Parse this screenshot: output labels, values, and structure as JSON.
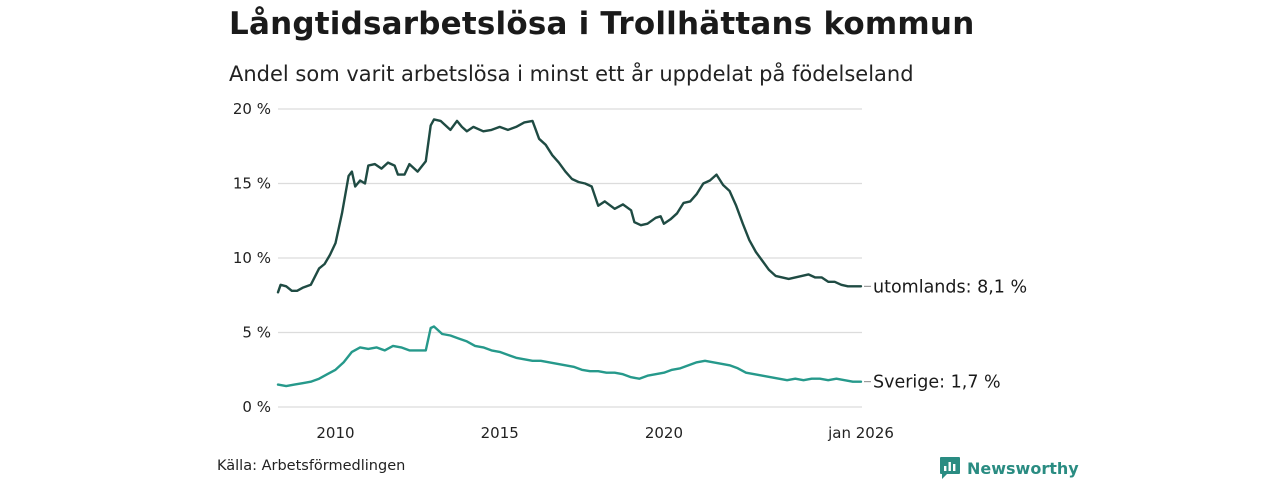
{
  "title": "Långtidsarbetslösa i Trollhättans kommun",
  "subtitle": "Andel som varit arbetslösa i minst ett år uppdelat på födelseland",
  "source": "Källa: Arbetsförmedlingen",
  "brand": {
    "name": "Newsworthy",
    "icon": "newsworthy-logo-icon",
    "color": "#2a8c82"
  },
  "chart_data": {
    "type": "line",
    "title": "Långtidsarbetslösa i Trollhättans kommun",
    "subtitle": "Andel som varit arbetslösa i minst ett år uppdelat på födelseland",
    "xlabel": "",
    "ylabel": "",
    "xlim": [
      2008.25,
      2026.0
    ],
    "ylim": [
      0,
      20
    ],
    "grid": true,
    "y_ticks": [
      {
        "value": 0,
        "label": "0 %"
      },
      {
        "value": 5,
        "label": "5 %"
      },
      {
        "value": 10,
        "label": "10 %"
      },
      {
        "value": 15,
        "label": "15 %"
      },
      {
        "value": 20,
        "label": "20 %"
      }
    ],
    "x_ticks": [
      {
        "value": 2010,
        "label": "2010"
      },
      {
        "value": 2015,
        "label": "2015"
      },
      {
        "value": 2020,
        "label": "2020"
      },
      {
        "value": 2026.0,
        "label": "jan 2026"
      }
    ],
    "series": [
      {
        "name": "utomlands",
        "end_label": "utomlands: 8,1 %",
        "color": "#1f4b43",
        "points": [
          [
            2008.25,
            7.7
          ],
          [
            2008.33,
            8.2
          ],
          [
            2008.5,
            8.1
          ],
          [
            2008.67,
            7.8
          ],
          [
            2008.83,
            7.8
          ],
          [
            2009.0,
            8.0
          ],
          [
            2009.25,
            8.2
          ],
          [
            2009.5,
            9.3
          ],
          [
            2009.67,
            9.6
          ],
          [
            2009.83,
            10.2
          ],
          [
            2010.0,
            11.0
          ],
          [
            2010.2,
            13.0
          ],
          [
            2010.4,
            15.5
          ],
          [
            2010.5,
            15.8
          ],
          [
            2010.6,
            14.8
          ],
          [
            2010.75,
            15.2
          ],
          [
            2010.9,
            15.0
          ],
          [
            2011.0,
            16.2
          ],
          [
            2011.2,
            16.3
          ],
          [
            2011.4,
            16.0
          ],
          [
            2011.6,
            16.4
          ],
          [
            2011.8,
            16.2
          ],
          [
            2011.9,
            15.6
          ],
          [
            2012.1,
            15.6
          ],
          [
            2012.25,
            16.3
          ],
          [
            2012.5,
            15.8
          ],
          [
            2012.75,
            16.5
          ],
          [
            2012.9,
            18.9
          ],
          [
            2013.0,
            19.3
          ],
          [
            2013.2,
            19.2
          ],
          [
            2013.5,
            18.6
          ],
          [
            2013.7,
            19.2
          ],
          [
            2013.85,
            18.8
          ],
          [
            2014.0,
            18.5
          ],
          [
            2014.2,
            18.8
          ],
          [
            2014.5,
            18.5
          ],
          [
            2014.75,
            18.6
          ],
          [
            2015.0,
            18.8
          ],
          [
            2015.25,
            18.6
          ],
          [
            2015.5,
            18.8
          ],
          [
            2015.75,
            19.1
          ],
          [
            2016.0,
            19.2
          ],
          [
            2016.2,
            18.0
          ],
          [
            2016.4,
            17.6
          ],
          [
            2016.6,
            16.9
          ],
          [
            2016.8,
            16.4
          ],
          [
            2017.0,
            15.8
          ],
          [
            2017.2,
            15.3
          ],
          [
            2017.4,
            15.1
          ],
          [
            2017.6,
            15.0
          ],
          [
            2017.8,
            14.8
          ],
          [
            2018.0,
            13.5
          ],
          [
            2018.2,
            13.8
          ],
          [
            2018.5,
            13.3
          ],
          [
            2018.75,
            13.6
          ],
          [
            2019.0,
            13.2
          ],
          [
            2019.1,
            12.4
          ],
          [
            2019.3,
            12.2
          ],
          [
            2019.5,
            12.3
          ],
          [
            2019.75,
            12.7
          ],
          [
            2019.9,
            12.8
          ],
          [
            2020.0,
            12.3
          ],
          [
            2020.2,
            12.6
          ],
          [
            2020.4,
            13.0
          ],
          [
            2020.6,
            13.7
          ],
          [
            2020.8,
            13.8
          ],
          [
            2021.0,
            14.3
          ],
          [
            2021.2,
            15.0
          ],
          [
            2021.4,
            15.2
          ],
          [
            2021.6,
            15.6
          ],
          [
            2021.8,
            14.9
          ],
          [
            2022.0,
            14.5
          ],
          [
            2022.2,
            13.5
          ],
          [
            2022.4,
            12.3
          ],
          [
            2022.6,
            11.2
          ],
          [
            2022.8,
            10.4
          ],
          [
            2023.0,
            9.8
          ],
          [
            2023.2,
            9.2
          ],
          [
            2023.4,
            8.8
          ],
          [
            2023.6,
            8.7
          ],
          [
            2023.8,
            8.6
          ],
          [
            2024.0,
            8.7
          ],
          [
            2024.2,
            8.8
          ],
          [
            2024.4,
            8.9
          ],
          [
            2024.6,
            8.7
          ],
          [
            2024.8,
            8.7
          ],
          [
            2025.0,
            8.4
          ],
          [
            2025.2,
            8.4
          ],
          [
            2025.4,
            8.2
          ],
          [
            2025.6,
            8.1
          ],
          [
            2025.8,
            8.1
          ],
          [
            2026.0,
            8.1
          ]
        ]
      },
      {
        "name": "Sverige",
        "end_label": "Sverige: 1,7 %",
        "color": "#26998b",
        "points": [
          [
            2008.25,
            1.5
          ],
          [
            2008.5,
            1.4
          ],
          [
            2008.75,
            1.5
          ],
          [
            2009.0,
            1.6
          ],
          [
            2009.25,
            1.7
          ],
          [
            2009.5,
            1.9
          ],
          [
            2009.75,
            2.2
          ],
          [
            2010.0,
            2.5
          ],
          [
            2010.25,
            3.0
          ],
          [
            2010.5,
            3.7
          ],
          [
            2010.75,
            4.0
          ],
          [
            2011.0,
            3.9
          ],
          [
            2011.25,
            4.0
          ],
          [
            2011.5,
            3.8
          ],
          [
            2011.75,
            4.1
          ],
          [
            2012.0,
            4.0
          ],
          [
            2012.25,
            3.8
          ],
          [
            2012.5,
            3.8
          ],
          [
            2012.75,
            3.8
          ],
          [
            2012.9,
            5.3
          ],
          [
            2013.0,
            5.4
          ],
          [
            2013.25,
            4.9
          ],
          [
            2013.5,
            4.8
          ],
          [
            2013.75,
            4.6
          ],
          [
            2014.0,
            4.4
          ],
          [
            2014.25,
            4.1
          ],
          [
            2014.5,
            4.0
          ],
          [
            2014.75,
            3.8
          ],
          [
            2015.0,
            3.7
          ],
          [
            2015.25,
            3.5
          ],
          [
            2015.5,
            3.3
          ],
          [
            2015.75,
            3.2
          ],
          [
            2016.0,
            3.1
          ],
          [
            2016.25,
            3.1
          ],
          [
            2016.5,
            3.0
          ],
          [
            2016.75,
            2.9
          ],
          [
            2017.0,
            2.8
          ],
          [
            2017.25,
            2.7
          ],
          [
            2017.5,
            2.5
          ],
          [
            2017.75,
            2.4
          ],
          [
            2018.0,
            2.4
          ],
          [
            2018.25,
            2.3
          ],
          [
            2018.5,
            2.3
          ],
          [
            2018.75,
            2.2
          ],
          [
            2019.0,
            2.0
          ],
          [
            2019.25,
            1.9
          ],
          [
            2019.5,
            2.1
          ],
          [
            2019.75,
            2.2
          ],
          [
            2020.0,
            2.3
          ],
          [
            2020.25,
            2.5
          ],
          [
            2020.5,
            2.6
          ],
          [
            2020.75,
            2.8
          ],
          [
            2021.0,
            3.0
          ],
          [
            2021.25,
            3.1
          ],
          [
            2021.5,
            3.0
          ],
          [
            2021.75,
            2.9
          ],
          [
            2022.0,
            2.8
          ],
          [
            2022.25,
            2.6
          ],
          [
            2022.5,
            2.3
          ],
          [
            2022.75,
            2.2
          ],
          [
            2023.0,
            2.1
          ],
          [
            2023.25,
            2.0
          ],
          [
            2023.5,
            1.9
          ],
          [
            2023.75,
            1.8
          ],
          [
            2024.0,
            1.9
          ],
          [
            2024.25,
            1.8
          ],
          [
            2024.5,
            1.9
          ],
          [
            2024.75,
            1.9
          ],
          [
            2025.0,
            1.8
          ],
          [
            2025.25,
            1.9
          ],
          [
            2025.5,
            1.8
          ],
          [
            2025.75,
            1.7
          ],
          [
            2026.0,
            1.7
          ]
        ]
      }
    ]
  }
}
